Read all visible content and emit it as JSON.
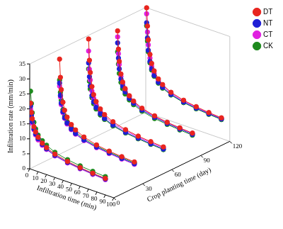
{
  "chart_data": {
    "type": "line3d",
    "x_label": "Infiltration time (min)",
    "y_label": "Infiltration rate (mm/min)",
    "z_label": "Crop planting time (day)",
    "x": [
      1,
      2,
      3,
      5,
      7,
      10,
      15,
      20,
      30,
      45,
      60,
      75,
      90
    ],
    "planting_time": [
      0,
      30,
      60,
      90,
      120
    ],
    "xlim": [
      0,
      100
    ],
    "xticks": [
      0,
      10,
      20,
      30,
      40,
      50,
      60,
      70,
      80,
      90,
      100
    ],
    "ylim": [
      0,
      35
    ],
    "yticks": [
      0,
      5,
      10,
      15,
      20,
      25,
      30,
      35
    ],
    "zlim": [
      0,
      120
    ],
    "zticks": [
      0,
      30,
      60,
      90,
      120
    ],
    "legend": "upper right",
    "marker": "circle",
    "series": [
      {
        "name": "DT",
        "color": "#e8251f",
        "values": [
          [
            22,
            19,
            17,
            14.5,
            13,
            11.5,
            10,
            9,
            7.8,
            6.8,
            6.2,
            5.8,
            5.5
          ],
          [
            32,
            26,
            22,
            18,
            15.5,
            13.5,
            11.5,
            10.2,
            8.8,
            7.6,
            7,
            6.6,
            6.3
          ],
          [
            34,
            27,
            23,
            18.5,
            16,
            14,
            12,
            10.6,
            9.2,
            8,
            7.3,
            6.9,
            6.6
          ],
          [
            32,
            26,
            22,
            18,
            15.5,
            13.6,
            11.7,
            10.4,
            9,
            7.9,
            7.2,
            6.8,
            6.5
          ],
          [
            35,
            29,
            24.5,
            19.8,
            17,
            14.8,
            12.6,
            11.2,
            9.6,
            8.4,
            7.7,
            7.2,
            6.9
          ]
        ]
      },
      {
        "name": "NT",
        "color": "#1f1fd6",
        "values": [
          [
            21,
            18,
            16,
            13.8,
            12.3,
            11,
            9.6,
            8.6,
            7.4,
            6.5,
            6,
            5.6,
            5.3
          ],
          [
            24,
            20,
            17.5,
            14.8,
            13,
            11.5,
            10,
            9,
            7.8,
            6.9,
            6.4,
            6,
            5.7
          ],
          [
            26,
            21.5,
            18.5,
            15.5,
            13.6,
            12,
            10.4,
            9.3,
            8.1,
            7.1,
            6.6,
            6.2,
            5.9
          ],
          [
            28,
            23,
            19.5,
            16.3,
            14.2,
            12.5,
            10.8,
            9.7,
            8.4,
            7.4,
            6.8,
            6.4,
            6.1
          ],
          [
            30,
            25,
            21,
            17.5,
            15.2,
            13.3,
            11.5,
            10.3,
            8.9,
            7.8,
            7.2,
            6.8,
            6.5
          ]
        ]
      },
      {
        "name": "CT",
        "color": "#e020e0",
        "values": [
          [
            20,
            17.5,
            15.5,
            13.5,
            12,
            10.6,
            9.3,
            8.4,
            7.2,
            6.3,
            5.8,
            5.4,
            5.1
          ],
          [
            23,
            19.5,
            17,
            14.5,
            12.8,
            11.2,
            9.8,
            8.8,
            7.6,
            6.7,
            6.2,
            5.8,
            5.5
          ],
          [
            30,
            24,
            20.5,
            17,
            14.8,
            13,
            11.2,
            10,
            8.7,
            7.6,
            7,
            6.6,
            6.3
          ],
          [
            30,
            24.5,
            21,
            17.2,
            15,
            13.2,
            11.4,
            10.1,
            8.8,
            7.7,
            7.1,
            6.7,
            6.4
          ],
          [
            33,
            27,
            22.8,
            18.6,
            16,
            14,
            12,
            10.8,
            9.3,
            8.1,
            7.5,
            7,
            6.7
          ]
        ]
      },
      {
        "name": "CK",
        "color": "#1e8a1e",
        "values": [
          [
            26,
            22,
            19,
            16,
            14,
            12.2,
            10.8,
            9.8,
            8.4,
            7.4,
            6.8,
            6.4,
            6.1
          ],
          [
            25,
            21,
            18.5,
            15.5,
            13.6,
            12,
            10.5,
            9.5,
            8.2,
            7.2,
            6.7,
            6.3,
            6
          ],
          [
            24,
            20,
            17.5,
            14.8,
            13,
            11.5,
            10,
            9,
            7.8,
            6.9,
            6.4,
            6,
            5.7
          ],
          [
            25,
            21,
            18,
            15.2,
            13.3,
            11.8,
            10.3,
            9.2,
            8,
            7,
            6.5,
            6.1,
            5.8
          ],
          [
            29,
            24,
            20.5,
            17,
            14.8,
            13,
            11.2,
            10,
            8.7,
            7.6,
            7,
            6.6,
            6.3
          ]
        ]
      }
    ]
  }
}
